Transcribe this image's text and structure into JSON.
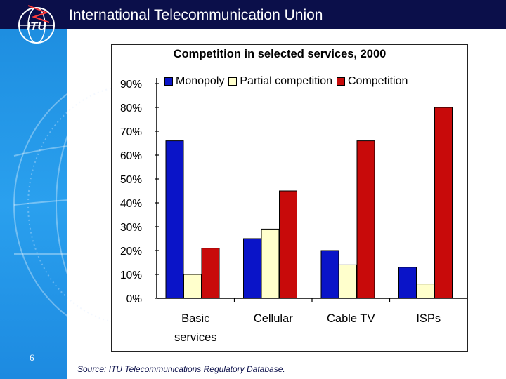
{
  "header": {
    "title": "International Telecommunication Union"
  },
  "logo": {
    "text": "ITU"
  },
  "footer": {
    "slide_number": "6",
    "source": "Source: ITU Telecommunications Regulatory Database."
  },
  "colors": {
    "header_bg": "#0b0f4a",
    "sidebar": "#2196e8",
    "monopoly": "#0a14c8",
    "partial_competition": "#ffffcc",
    "competition": "#c80a0a"
  },
  "chart_data": {
    "type": "bar",
    "title": "Competition in selected services, 2000",
    "categories": [
      [
        "Basic",
        "services"
      ],
      [
        "Cellular"
      ],
      [
        "Cable TV"
      ],
      [
        "ISPs"
      ]
    ],
    "series": [
      {
        "name": "Monopoly",
        "values": [
          66,
          25,
          20,
          13
        ]
      },
      {
        "name": "Partial competition",
        "values": [
          10,
          29,
          14,
          6
        ]
      },
      {
        "name": "Competition",
        "values": [
          21,
          45,
          66,
          80
        ]
      }
    ],
    "y_ticks": [
      "0%",
      "10%",
      "20%",
      "30%",
      "40%",
      "50%",
      "60%",
      "70%",
      "80%",
      "90%"
    ],
    "ylim": [
      0,
      90
    ],
    "legend_position": "top",
    "grid": false
  }
}
